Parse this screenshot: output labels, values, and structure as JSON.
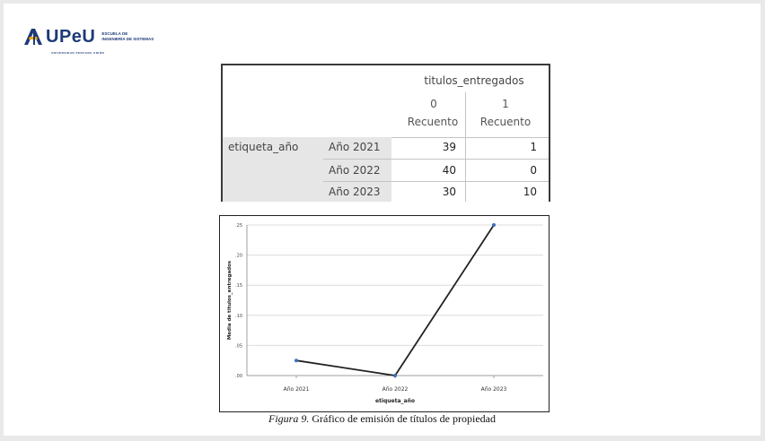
{
  "logo": {
    "brand": "UPeU",
    "university": "UNIVERSIDAD PERUANA UNIÓN",
    "school_line1": "ESCUELA DE",
    "school_line2": "INGENIERÍA DE SISTEMAS",
    "brand_color": "#1e3a78",
    "accent_color": "#f2a900"
  },
  "table": {
    "column_variable": "titulos_entregados",
    "columns": [
      {
        "value": "0",
        "stat": "Recuento"
      },
      {
        "value": "1",
        "stat": "Recuento"
      }
    ],
    "row_variable": "etiqueta_año",
    "rows": [
      {
        "label": "Año 2021",
        "values": [
          "39",
          "1"
        ]
      },
      {
        "label": "Año 2022",
        "values": [
          "40",
          "0"
        ]
      },
      {
        "label": "Año 2023",
        "values": [
          "30",
          "10"
        ]
      }
    ]
  },
  "chart_data": {
    "type": "line",
    "categories": [
      "Año 2021",
      "Año 2022",
      "Año 2023"
    ],
    "series": [
      {
        "values": [
          0.025,
          0.0,
          0.25
        ]
      }
    ],
    "xlabel": "etiqueta_año",
    "ylabel": "Media de titulos_entregados",
    "yticks": [
      ".00",
      ".05",
      ".10",
      ".15",
      ".20",
      ".25"
    ],
    "ylim": [
      0,
      0.25
    ],
    "grid": true,
    "line_color": "#222222",
    "marker_color": "#3d6fb6"
  },
  "caption": {
    "label": "Figura 9.",
    "text": " Gráfico de emisión de títulos de propiedad"
  }
}
